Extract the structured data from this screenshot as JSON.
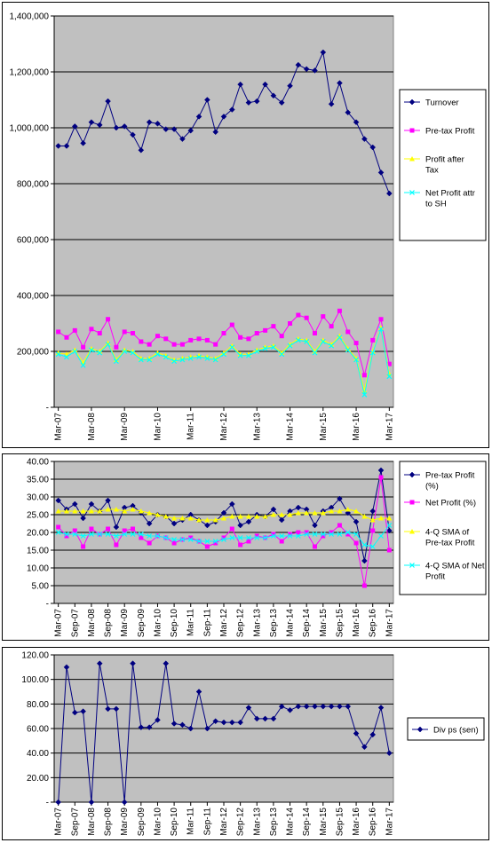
{
  "chart_data": [
    {
      "type": "line",
      "x_labels": [
        "Mar-07",
        "Mar-08",
        "Mar-09",
        "Mar-10",
        "Mar-11",
        "Mar-12",
        "Mar-13",
        "Mar-14",
        "Mar-15",
        "Mar-16",
        "Mar-17"
      ],
      "ylim": [
        0,
        1400000
      ],
      "y_ticks": [
        "-",
        "200,000",
        "400,000",
        "600,000",
        "800,000",
        "1,000,000",
        "1,200,000",
        "1,400,000"
      ],
      "grid": true,
      "legend_position": "right",
      "series": [
        {
          "name": "Turnover",
          "color": "#000080",
          "marker": "diamond",
          "values": [
            935000,
            935000,
            1005000,
            945000,
            1020000,
            1010000,
            1095000,
            1000000,
            1005000,
            975000,
            920000,
            1020000,
            1015000,
            995000,
            995000,
            960000,
            990000,
            1040000,
            1100000,
            985000,
            1040000,
            1065000,
            1155000,
            1090000,
            1095000,
            1155000,
            1115000,
            1090000,
            1150000,
            1225000,
            1210000,
            1205000,
            1270000,
            1085000,
            1160000,
            1055000,
            1020000,
            960000,
            930000,
            840000,
            765000
          ]
        },
        {
          "name": "Pre-tax Profit",
          "color": "#ff00ff",
          "marker": "square",
          "values": [
            270000,
            250000,
            275000,
            215000,
            280000,
            265000,
            315000,
            215000,
            270000,
            265000,
            235000,
            225000,
            255000,
            245000,
            225000,
            225000,
            240000,
            245000,
            240000,
            225000,
            265000,
            295000,
            250000,
            245000,
            265000,
            275000,
            290000,
            255000,
            300000,
            330000,
            320000,
            265000,
            325000,
            290000,
            345000,
            270000,
            230000,
            115000,
            240000,
            315000,
            155000
          ]
        },
        {
          "name": "Profit after Tax",
          "color": "#ffff00",
          "marker": "triangle",
          "values": [
            195000,
            190000,
            205000,
            160000,
            210000,
            200000,
            230000,
            170000,
            205000,
            200000,
            175000,
            175000,
            195000,
            185000,
            170000,
            175000,
            180000,
            185000,
            180000,
            175000,
            195000,
            220000,
            190000,
            190000,
            205000,
            215000,
            220000,
            195000,
            225000,
            245000,
            240000,
            200000,
            240000,
            225000,
            255000,
            210000,
            175000,
            60000,
            200000,
            285000,
            120000
          ]
        },
        {
          "name": "Net Profit attr to SH",
          "color": "#00ffff",
          "marker": "x",
          "values": [
            190000,
            180000,
            200000,
            150000,
            205000,
            195000,
            225000,
            165000,
            200000,
            195000,
            170000,
            170000,
            190000,
            180000,
            165000,
            170000,
            175000,
            180000,
            175000,
            170000,
            190000,
            215000,
            185000,
            185000,
            200000,
            210000,
            215000,
            190000,
            220000,
            240000,
            235000,
            195000,
            235000,
            220000,
            250000,
            205000,
            170000,
            45000,
            195000,
            280000,
            110000
          ]
        }
      ]
    },
    {
      "type": "line",
      "x_labels": [
        "Mar-07",
        "Sep-07",
        "Mar-08",
        "Sep-08",
        "Mar-09",
        "Sep-09",
        "Mar-10",
        "Sep-10",
        "Mar-11",
        "Sep-11",
        "Mar-12",
        "Sep-12",
        "Mar-13",
        "Sep-13",
        "Mar-14",
        "Sep-14",
        "Mar-15",
        "Sep-15",
        "Mar-16",
        "Sep-16",
        "Mar-17"
      ],
      "ylim": [
        0,
        40
      ],
      "y_ticks": [
        "-",
        "5.00",
        "10.00",
        "15.00",
        "20.00",
        "25.00",
        "30.00",
        "35.00",
        "40.00"
      ],
      "grid": true,
      "legend_position": "right",
      "series": [
        {
          "name": "Pre-tax Profit (%)",
          "color": "#000080",
          "marker": "diamond",
          "values": [
            29,
            26.5,
            28,
            24,
            28,
            26,
            29,
            21.5,
            27,
            27.5,
            25.5,
            22.5,
            25,
            24.5,
            22.5,
            23.5,
            25,
            23.5,
            22,
            23,
            25.5,
            28,
            22,
            23,
            25,
            24.5,
            26.5,
            23.5,
            26,
            27,
            26.5,
            22,
            26,
            27,
            29.5,
            25.5,
            23,
            12,
            26,
            37.5,
            20.5
          ]
        },
        {
          "name": "Net Profit (%)",
          "color": "#ff00ff",
          "marker": "square",
          "values": [
            21.5,
            19,
            20.5,
            16,
            21,
            19.5,
            21,
            16.5,
            20.5,
            21,
            18.5,
            17,
            19,
            18.5,
            17,
            18,
            18.5,
            17.5,
            16,
            17,
            18.5,
            21,
            16.5,
            17.5,
            19,
            18.5,
            19.5,
            17.5,
            19.5,
            20,
            20,
            16,
            19,
            20,
            22,
            19.5,
            17,
            5,
            20.5,
            35.5,
            15
          ]
        },
        {
          "name": "4-Q SMA of Pre-tax Profit",
          "color": "#ffff00",
          "marker": "triangle",
          "values": [
            26,
            26,
            26,
            26,
            26,
            26,
            26.5,
            26.5,
            26,
            26.5,
            26,
            25.5,
            25,
            24.5,
            24,
            24,
            24,
            23.5,
            23.5,
            23.5,
            24,
            24.5,
            24.5,
            24.5,
            24.5,
            24.5,
            25,
            25,
            25,
            25.5,
            25.5,
            25.5,
            25.5,
            26,
            26,
            26.5,
            26,
            24.5,
            23.5,
            24,
            24
          ]
        },
        {
          "name": "4-Q SMA of Net Profit",
          "color": "#00ffff",
          "marker": "x",
          "values": [
            20,
            19.5,
            19.5,
            19,
            19.5,
            19.5,
            19.5,
            19,
            19.5,
            19.5,
            19.5,
            19,
            19,
            18.5,
            18,
            18,
            18,
            17.5,
            17.5,
            17.5,
            18,
            18.5,
            18.5,
            18.5,
            18.5,
            18.5,
            19,
            19,
            19,
            19,
            19.5,
            19.5,
            19.5,
            19.5,
            19.5,
            20,
            19.5,
            16.5,
            16,
            19,
            22
          ]
        }
      ]
    },
    {
      "type": "line",
      "x_labels": [
        "Mar-07",
        "Sep-07",
        "Mar-08",
        "Sep-08",
        "Mar-09",
        "Sep-09",
        "Mar-10",
        "Sep-10",
        "Mar-11",
        "Sep-11",
        "Mar-12",
        "Sep-12",
        "Mar-13",
        "Sep-13",
        "Mar-14",
        "Sep-14",
        "Mar-15",
        "Sep-15",
        "Mar-16",
        "Sep-16",
        "Mar-17"
      ],
      "ylim": [
        0,
        120
      ],
      "y_ticks": [
        "-",
        "20.00",
        "40.00",
        "60.00",
        "80.00",
        "100.00",
        "120.00"
      ],
      "grid": true,
      "legend_position": "right",
      "series": [
        {
          "name": "Div ps  (sen)",
          "color": "#000080",
          "marker": "diamond",
          "values": [
            0,
            110,
            73,
            74,
            0,
            113,
            76,
            76,
            0,
            113,
            61,
            61,
            67,
            113,
            64,
            63,
            60,
            90,
            60,
            66,
            65,
            65,
            65,
            77,
            68,
            68,
            68,
            78,
            75,
            78,
            78,
            78,
            78,
            78,
            78,
            78,
            56,
            45,
            55,
            77,
            40
          ]
        }
      ]
    }
  ]
}
